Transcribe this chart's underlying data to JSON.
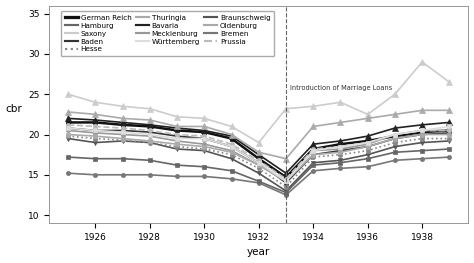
{
  "years": [
    1925,
    1926,
    1927,
    1928,
    1929,
    1930,
    1931,
    1932,
    1933,
    1934,
    1935,
    1936,
    1937,
    1938,
    1939
  ],
  "series": [
    {
      "name": "German Reich",
      "values": [
        21.5,
        21.5,
        21.2,
        21.0,
        20.5,
        20.3,
        19.5,
        17.0,
        14.7,
        18.2,
        18.8,
        19.2,
        19.8,
        20.3,
        20.5
      ],
      "color": "#111111",
      "lw": 1.8,
      "marker": "s",
      "ms": 3.5,
      "ls": "-",
      "mfc": "#111111"
    },
    {
      "name": "Baden",
      "values": [
        20.8,
        20.5,
        20.5,
        20.3,
        19.8,
        19.5,
        18.5,
        16.5,
        14.0,
        17.5,
        18.0,
        18.5,
        19.5,
        20.0,
        20.2
      ],
      "color": "#333333",
      "lw": 1.2,
      "marker": "s",
      "ms": 3.0,
      "ls": "-",
      "mfc": "#333333"
    },
    {
      "name": "Bavaria",
      "values": [
        22.0,
        21.8,
        21.5,
        21.2,
        20.8,
        20.5,
        19.8,
        17.5,
        15.2,
        18.8,
        19.2,
        19.8,
        20.8,
        21.2,
        21.5
      ],
      "color": "#222222",
      "lw": 1.2,
      "marker": "^",
      "ms": 4.0,
      "ls": "-",
      "mfc": "#222222"
    },
    {
      "name": "Braunschweig",
      "values": [
        19.5,
        19.0,
        19.2,
        19.0,
        18.2,
        18.0,
        17.0,
        15.2,
        13.0,
        16.5,
        16.8,
        17.5,
        18.5,
        19.0,
        19.2
      ],
      "color": "#555555",
      "lw": 1.2,
      "marker": "v",
      "ms": 3.0,
      "ls": "-",
      "mfc": "#555555"
    },
    {
      "name": "Bremen",
      "values": [
        15.2,
        15.0,
        15.0,
        15.0,
        14.8,
        14.8,
        14.5,
        14.0,
        12.5,
        15.5,
        15.8,
        16.0,
        16.8,
        17.0,
        17.2
      ],
      "color": "#777777",
      "lw": 1.2,
      "marker": "o",
      "ms": 3.0,
      "ls": "-",
      "mfc": "#777777"
    },
    {
      "name": "Hamburg",
      "values": [
        17.2,
        17.0,
        17.0,
        16.8,
        16.2,
        16.0,
        15.5,
        14.2,
        12.8,
        16.2,
        16.5,
        17.0,
        17.8,
        18.0,
        18.2
      ],
      "color": "#666666",
      "lw": 1.2,
      "marker": "s",
      "ms": 3.0,
      "ls": "-",
      "mfc": "#666666"
    },
    {
      "name": "Hesse",
      "values": [
        19.8,
        19.5,
        19.3,
        19.0,
        18.5,
        18.2,
        17.5,
        15.8,
        13.5,
        17.2,
        17.5,
        18.0,
        19.0,
        19.5,
        19.5
      ],
      "color": "#888888",
      "lw": 1.2,
      "marker": "o",
      "ms": 3.0,
      "ls": ":",
      "mfc": "#888888"
    },
    {
      "name": "Mecklenburg",
      "values": [
        20.5,
        20.2,
        20.0,
        19.8,
        19.2,
        18.8,
        18.0,
        16.2,
        14.2,
        18.0,
        18.2,
        18.8,
        20.0,
        20.5,
        20.5
      ],
      "color": "#999999",
      "lw": 1.2,
      "marker": "o",
      "ms": 3.0,
      "ls": "-",
      "mfc": "#999999"
    },
    {
      "name": "Oldenburg",
      "values": [
        20.0,
        19.8,
        19.5,
        19.2,
        18.8,
        18.5,
        17.8,
        16.2,
        14.2,
        17.5,
        17.8,
        18.5,
        19.5,
        20.0,
        20.0
      ],
      "color": "#aaaaaa",
      "lw": 1.2,
      "marker": "s",
      "ms": 3.0,
      "ls": "-",
      "mfc": "#aaaaaa"
    },
    {
      "name": "Prussia",
      "values": [
        21.2,
        21.0,
        20.8,
        20.5,
        20.0,
        19.8,
        18.8,
        16.8,
        14.5,
        18.2,
        18.5,
        19.0,
        20.0,
        20.5,
        20.5
      ],
      "color": "#bbbbbb",
      "lw": 1.2,
      "marker": "o",
      "ms": 3.0,
      "ls": "--",
      "mfc": "#bbbbbb"
    },
    {
      "name": "Saxony",
      "values": [
        25.0,
        24.0,
        23.5,
        23.2,
        22.2,
        22.0,
        21.0,
        19.0,
        23.2,
        23.5,
        24.0,
        22.5,
        25.0,
        29.0,
        26.5
      ],
      "color": "#cccccc",
      "lw": 1.2,
      "marker": "^",
      "ms": 4.0,
      "ls": "-",
      "mfc": "#cccccc"
    },
    {
      "name": "Thuringia",
      "values": [
        22.8,
        22.5,
        22.0,
        21.8,
        21.0,
        21.0,
        20.0,
        17.8,
        17.0,
        21.0,
        21.5,
        22.0,
        22.5,
        23.0,
        23.0
      ],
      "color": "#aaaaaa",
      "lw": 1.2,
      "marker": "^",
      "ms": 4.0,
      "ls": "-",
      "mfc": "#aaaaaa"
    },
    {
      "name": "Württemberg",
      "values": [
        20.8,
        20.5,
        20.3,
        20.0,
        19.5,
        19.5,
        18.5,
        16.5,
        14.2,
        18.0,
        18.5,
        19.0,
        20.0,
        20.5,
        21.0
      ],
      "color": "#dddddd",
      "lw": 1.2,
      "marker": "s",
      "ms": 3.0,
      "ls": "-",
      "mfc": "#dddddd"
    }
  ],
  "vline_x": 1933,
  "vline_label": "Introduction of Marriage Loans",
  "xlabel": "year",
  "ylabel": "cbr",
  "ylim": [
    9,
    36
  ],
  "yticks": [
    10,
    15,
    20,
    25,
    30,
    35
  ],
  "xticks": [
    1926,
    1928,
    1930,
    1932,
    1934,
    1936,
    1938
  ],
  "bg_color": "#ffffff",
  "legend_ncol": 3,
  "legend_fontsize": 5.2
}
